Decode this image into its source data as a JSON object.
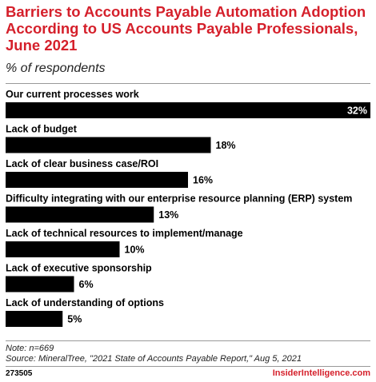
{
  "header": {
    "title": "Barriers to Accounts Payable Automation Adoption According to US Accounts Payable Professionals, June 2021",
    "subtitle": "% of respondents"
  },
  "chart_data": {
    "type": "bar",
    "orientation": "horizontal",
    "categories": [
      "Our current processes work",
      "Lack of budget",
      "Lack of clear business case/ROI",
      "Difficulty integrating with our enterprise resource planning (ERP) system",
      "Lack of technical resources to implement/manage",
      "Lack of executive sponsorship",
      "Lack of understanding of options"
    ],
    "values": [
      32,
      18,
      16,
      13,
      10,
      6,
      5
    ],
    "value_labels": [
      "32%",
      "18%",
      "16%",
      "13%",
      "10%",
      "6%",
      "5%"
    ],
    "unit": "%",
    "xlim": [
      0,
      32
    ],
    "grid": false,
    "bar_color": "#000000"
  },
  "footer": {
    "note": "Note: n=669",
    "source": "Source: MineralTree, \"2021 State of Accounts Payable Report,\" Aug 5, 2021",
    "chart_id": "273505",
    "brand": "InsiderIntelligence.com"
  },
  "colors": {
    "accent": "#d5202b",
    "text": "#000000"
  }
}
